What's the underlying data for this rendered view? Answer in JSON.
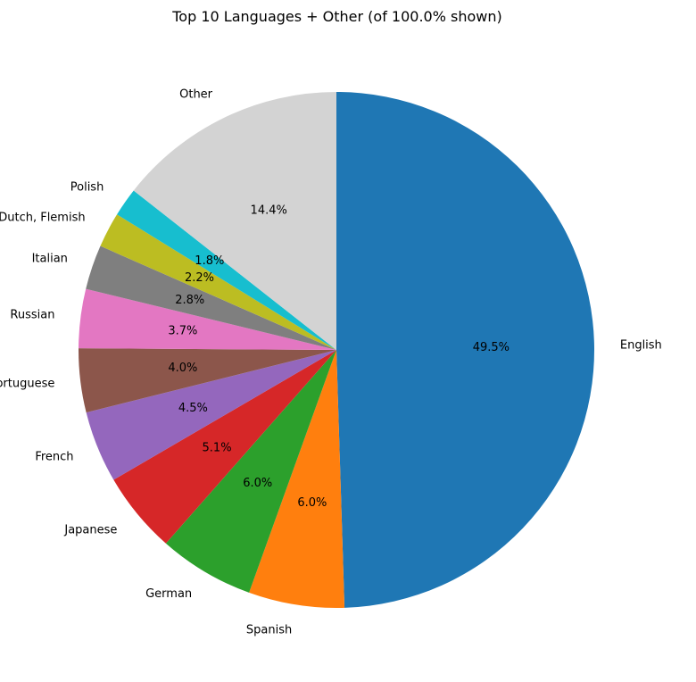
{
  "chart_data": {
    "type": "pie",
    "title": "Top 10 Languages + Other (of 100.0% shown)",
    "start_angle_deg": 90,
    "direction": "clockwise",
    "categories": [
      "English",
      "Spanish",
      "German",
      "Japanese",
      "French",
      "Portuguese",
      "Russian",
      "Italian",
      "Dutch, Flemish",
      "Polish",
      "Other"
    ],
    "values": [
      49.5,
      6.0,
      6.0,
      5.1,
      4.5,
      4.0,
      3.7,
      2.8,
      2.2,
      1.8,
      14.4
    ],
    "value_labels": [
      "49.5%",
      "6.0%",
      "6.0%",
      "5.1%",
      "4.5%",
      "4.0%",
      "3.7%",
      "2.8%",
      "2.2%",
      "1.8%",
      "14.4%"
    ],
    "colors": [
      "#1f77b4",
      "#ff7f0e",
      "#2ca02c",
      "#d62728",
      "#9467bd",
      "#8c564b",
      "#e377c2",
      "#7f7f7f",
      "#bcbd22",
      "#17becf",
      "#d3d3d3"
    ]
  }
}
